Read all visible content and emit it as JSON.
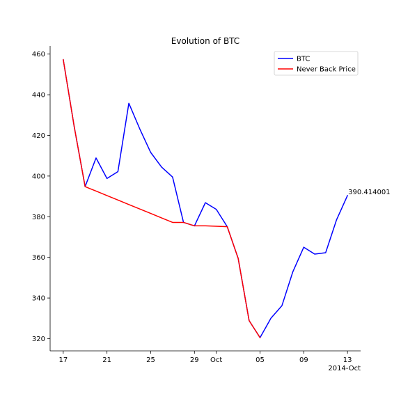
{
  "chart_data": {
    "type": "line",
    "title": "Evolution of BTC",
    "xlabel": "",
    "ylabel": "",
    "x": [
      "2014-09-17",
      "2014-09-18",
      "2014-09-19",
      "2014-09-20",
      "2014-09-21",
      "2014-09-22",
      "2014-09-23",
      "2014-09-24",
      "2014-09-25",
      "2014-09-26",
      "2014-09-27",
      "2014-09-28",
      "2014-09-29",
      "2014-09-30",
      "2014-10-01",
      "2014-10-02",
      "2014-10-03",
      "2014-10-04",
      "2014-10-05",
      "2014-10-06",
      "2014-10-07",
      "2014-10-08",
      "2014-10-09",
      "2014-10-10",
      "2014-10-11",
      "2014-10-12",
      "2014-10-13"
    ],
    "series": [
      {
        "name": "BTC",
        "color": "#0000ff",
        "values": [
          457.3,
          424.4,
          394.8,
          408.9,
          398.8,
          402.2,
          435.8,
          423.2,
          411.6,
          404.4,
          399.5,
          377.2,
          375.5,
          386.9,
          383.6,
          375.1,
          359.5,
          328.9,
          320.5,
          330.1,
          336.2,
          352.9,
          365.0,
          361.6,
          362.3,
          378.5,
          390.414001
        ]
      },
      {
        "name": "Never Back Price",
        "color": "#ff0000",
        "values": [
          457.3,
          424.4,
          394.8,
          392.6,
          390.4,
          388.2,
          386.0,
          383.8,
          381.6,
          379.4,
          377.2,
          377.2,
          375.5,
          375.5,
          375.3,
          375.1,
          359.5,
          328.9,
          320.5,
          null,
          null,
          null,
          null,
          null,
          null,
          null,
          null
        ]
      }
    ],
    "ylim": [
      314,
      464
    ],
    "yticks": [
      320,
      340,
      360,
      380,
      400,
      420,
      440,
      460
    ],
    "xticks": [
      {
        "date": "2014-09-17",
        "label": "17"
      },
      {
        "date": "2014-09-21",
        "label": "21"
      },
      {
        "date": "2014-09-25",
        "label": "25"
      },
      {
        "date": "2014-09-29",
        "label": "29"
      },
      {
        "date": "2014-10-01",
        "label": "Oct"
      },
      {
        "date": "2014-10-05",
        "label": "05"
      },
      {
        "date": "2014-10-09",
        "label": "09"
      },
      {
        "date": "2014-10-13",
        "label": "13"
      }
    ],
    "x_offset_label": "2014-Oct",
    "annotation": {
      "text": "390.414001",
      "date": "2014-10-13",
      "value": 390.414001
    },
    "legend": {
      "position": "top-right"
    },
    "grid": false
  }
}
